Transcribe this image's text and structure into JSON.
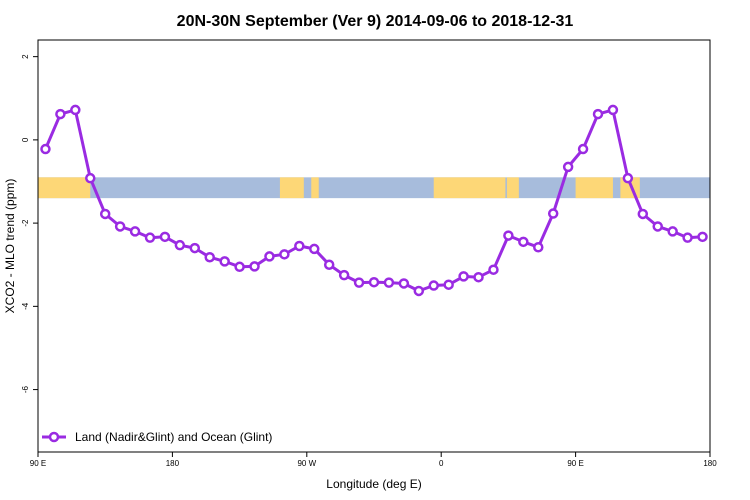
{
  "chart_data": {
    "type": "line",
    "title": "20N-30N September (Ver 9)   2014-09-06 to 2018-12-31",
    "xlabel": "Longitude (deg E)",
    "ylabel": "XCO2 - MLO trend (ppm)",
    "xlim": [
      90,
      540
    ],
    "ylim": [
      -7.5,
      2.4
    ],
    "x_ticks": [
      {
        "value": 90,
        "label": "90 E"
      },
      {
        "value": 180,
        "label": "180"
      },
      {
        "value": 270,
        "label": "90 W"
      },
      {
        "value": 360,
        "label": "0"
      },
      {
        "value": 450,
        "label": "90 E"
      },
      {
        "value": 540,
        "label": "180"
      }
    ],
    "y_ticks": [
      {
        "value": 2,
        "label": "2"
      },
      {
        "value": 0,
        "label": "0"
      },
      {
        "value": -2,
        "label": "-2"
      },
      {
        "value": -4,
        "label": "-4"
      },
      {
        "value": -6,
        "label": "-6"
      }
    ],
    "land_ocean_band": {
      "y_range": [
        -1.4,
        -0.9
      ],
      "ocean_color": "#a7bcdc",
      "land_color": "#fdd777",
      "land_segments": [
        [
          90,
          125
        ],
        [
          252,
          268
        ],
        [
          273,
          278
        ],
        [
          355,
          403
        ],
        [
          404,
          412
        ],
        [
          450,
          475
        ],
        [
          480,
          493
        ]
      ]
    },
    "series": [
      {
        "name": "Land (Nadir&Glint) and Ocean (Glint)",
        "color": "#9a2be2",
        "x": [
          95,
          105,
          115,
          125,
          135,
          145,
          155,
          165,
          175,
          185,
          195,
          205,
          215,
          225,
          235,
          245,
          255,
          265,
          275,
          285,
          295,
          305,
          315,
          325,
          335,
          345,
          355,
          365,
          375,
          385,
          395,
          405,
          415,
          425,
          435,
          445,
          455,
          465,
          475,
          485,
          495,
          505,
          515,
          525,
          535
        ],
        "y": [
          -0.22,
          0.62,
          0.72,
          -0.92,
          -1.78,
          -2.08,
          -2.2,
          -2.35,
          -2.33,
          -2.53,
          -2.6,
          -2.82,
          -2.92,
          -3.05,
          -3.04,
          -2.8,
          -2.75,
          -2.55,
          -2.62,
          -3.0,
          -3.25,
          -3.43,
          -3.42,
          -3.43,
          -3.45,
          -3.63,
          -3.5,
          -3.48,
          -3.28,
          -3.3,
          -3.12,
          -2.3,
          -2.45,
          -2.58,
          -1.77,
          -0.65,
          -0.22,
          0.62,
          0.72,
          -0.92,
          -1.78,
          -2.08,
          -2.2,
          -2.35,
          -2.33
        ]
      }
    ],
    "legend_position": "bottom-left"
  }
}
